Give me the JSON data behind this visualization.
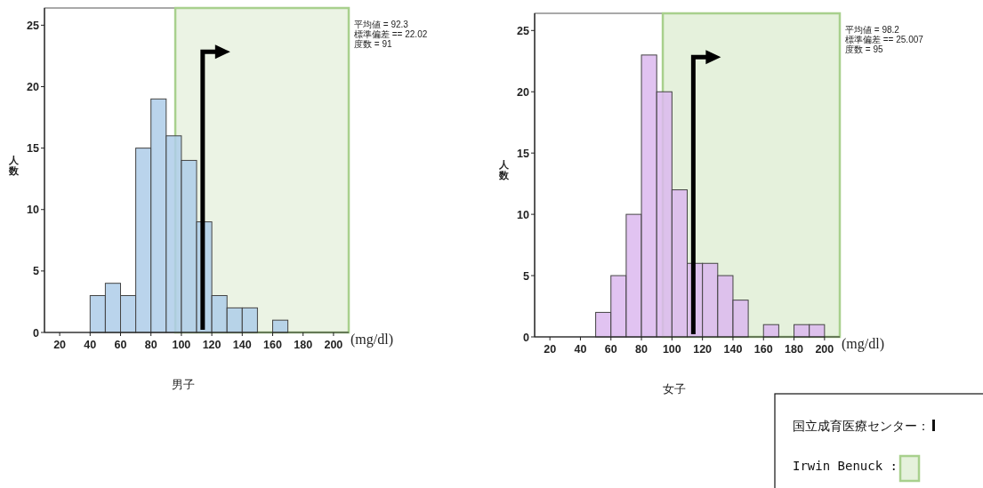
{
  "chart_data": [
    {
      "type": "histogram",
      "title": "男子",
      "xlabel": "(mg/dl)",
      "ylabel": "人数",
      "bins": [
        40,
        50,
        60,
        70,
        80,
        90,
        100,
        110,
        120,
        130,
        140,
        150,
        160,
        170
      ],
      "values": [
        3,
        4,
        3,
        15,
        19,
        16,
        14,
        9,
        3,
        2,
        2,
        0,
        1
      ],
      "color": "#aecde9",
      "xlim": [
        10,
        210
      ],
      "ylim": [
        0,
        26.4
      ],
      "xticks": [
        20,
        40,
        60,
        80,
        100,
        120,
        140,
        160,
        180,
        200
      ],
      "yticks": [
        0,
        5,
        10,
        15,
        20,
        25
      ],
      "annotations": [
        "平均値 = 92.3",
        "標準偏差 == 22.02",
        "度数 = 91"
      ],
      "bands": [
        {
          "axis": "x",
          "from": 96,
          "to": 210,
          "color": "#ebf3e4"
        }
      ],
      "ref_lines": [
        {
          "axis": "x",
          "value": 114
        }
      ]
    },
    {
      "type": "histogram",
      "title": "女子",
      "xlabel": "(mg/dl)",
      "ylabel": "人数",
      "bins": [
        50,
        60,
        70,
        80,
        90,
        100,
        110,
        120,
        130,
        140,
        150,
        160,
        170,
        180,
        190,
        200
      ],
      "values": [
        2,
        5,
        10,
        23,
        20,
        12,
        6,
        6,
        5,
        3,
        0,
        1,
        0,
        1,
        1
      ],
      "color": "#dcb8ef",
      "xlim": [
        10,
        210
      ],
      "ylim": [
        0,
        26.4
      ],
      "xticks": [
        20,
        40,
        60,
        80,
        100,
        120,
        140,
        160,
        180,
        200
      ],
      "yticks": [
        0,
        5,
        10,
        15,
        20,
        25
      ],
      "annotations": [
        "平均値 = 98.2",
        "標準偏差 == 25.007",
        "度数 = 95"
      ],
      "bands": [
        {
          "axis": "x",
          "from": 94,
          "to": 210,
          "color": "#e5f1dc",
          "label": "Irwin Benuck :"
        }
      ],
      "ref_lines": [
        {
          "axis": "x",
          "value": 114,
          "label": "国立成育医療センター："
        }
      ]
    }
  ]
}
